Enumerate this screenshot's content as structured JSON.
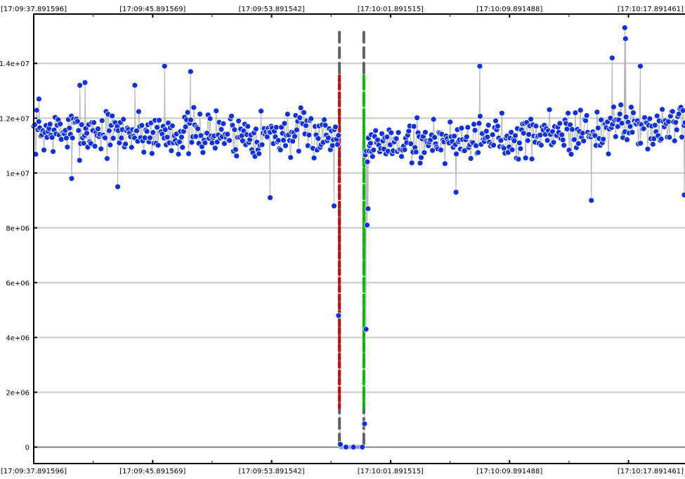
{
  "chart_data": {
    "type": "scatter",
    "title": "",
    "xlabel": "",
    "ylabel": "",
    "x_tick_labels": [
      "[17:09:37.891596]",
      "[17:09:45.891569]",
      "[17:09:53.891542]",
      "[17:10:01.891515]",
      "[17:10:09.891488]",
      "[17:10:17.891461]"
    ],
    "x_tick_seconds": [
      0,
      8,
      16,
      24,
      32,
      40
    ],
    "xlim_seconds": [
      0,
      43.8
    ],
    "y_tick_labels": [
      "0",
      "2e+06",
      "4e+06",
      "6e+06",
      "8e+06",
      "1e+07",
      "1.2e+07",
      "1.4e+07"
    ],
    "y_tick_values": [
      0,
      2000000,
      4000000,
      6000000,
      8000000,
      10000000,
      12000000,
      14000000
    ],
    "ylim": [
      -600000,
      15800000
    ],
    "grid": true,
    "markers": [
      {
        "name": "selection-start",
        "x_seconds": 20.56,
        "color": "#e00000"
      },
      {
        "name": "selection-end",
        "x_seconds": 22.2,
        "color": "#00c000"
      }
    ],
    "series": [
      {
        "color": "#1030e0",
        "segments": [
          {
            "x_start": 0.0,
            "x_end": 20.5,
            "count": 300,
            "base_start": 11500000,
            "base_end": 11400000,
            "spread": 1000000,
            "seed": 7
          },
          {
            "x_start": 22.3,
            "x_end": 43.8,
            "count": 310,
            "base_start": 11000000,
            "base_end": 11800000,
            "spread": 1000000,
            "seed": 19
          }
        ],
        "points": [
          {
            "x": 0.35,
            "y": 12700000
          },
          {
            "x": 2.55,
            "y": 9800000
          },
          {
            "x": 3.1,
            "y": 13200000
          },
          {
            "x": 3.45,
            "y": 13300000
          },
          {
            "x": 5.65,
            "y": 9500000
          },
          {
            "x": 6.8,
            "y": 13200000
          },
          {
            "x": 8.8,
            "y": 13900000
          },
          {
            "x": 10.55,
            "y": 13700000
          },
          {
            "x": 15.9,
            "y": 9100000
          },
          {
            "x": 20.2,
            "y": 8800000
          },
          {
            "x": 20.5,
            "y": 4800000
          },
          {
            "x": 20.62,
            "y": 100000
          },
          {
            "x": 21.0,
            "y": 0
          },
          {
            "x": 21.5,
            "y": 0
          },
          {
            "x": 22.1,
            "y": 0
          },
          {
            "x": 22.25,
            "y": 850000
          },
          {
            "x": 22.35,
            "y": 4300000
          },
          {
            "x": 22.42,
            "y": 8100000
          },
          {
            "x": 22.48,
            "y": 8700000
          },
          {
            "x": 22.55,
            "y": 10800000
          },
          {
            "x": 22.7,
            "y": 11400000
          },
          {
            "x": 28.4,
            "y": 9300000
          },
          {
            "x": 30.0,
            "y": 13900000
          },
          {
            "x": 37.5,
            "y": 9000000
          },
          {
            "x": 38.9,
            "y": 14200000
          },
          {
            "x": 39.75,
            "y": 15300000
          },
          {
            "x": 39.8,
            "y": 14900000
          },
          {
            "x": 40.8,
            "y": 13900000
          },
          {
            "x": 43.75,
            "y": 9200000
          }
        ]
      }
    ]
  }
}
